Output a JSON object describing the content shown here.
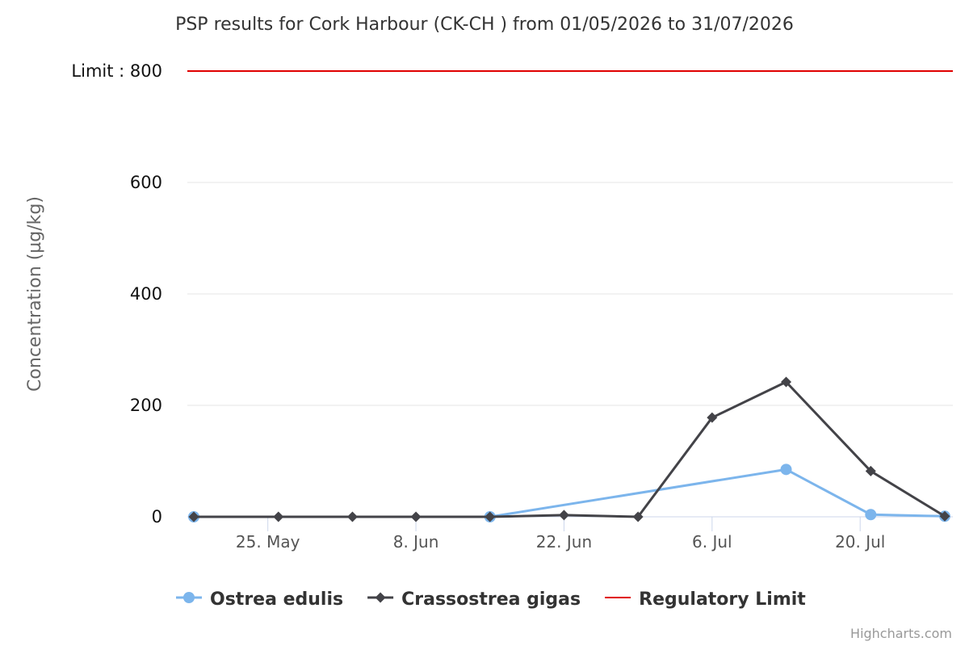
{
  "chart_data": {
    "type": "line",
    "title": "PSP results for Cork Harbour (CK-CH ) from 01/05/2026 to 31/07/2026",
    "ylabel": "Concentration (µg/kg)",
    "xlabel": "",
    "ylim": [
      0,
      800
    ],
    "xlim": [
      "2026-05-18",
      "2026-07-28"
    ],
    "y_ticks": [
      0,
      200,
      400,
      600,
      800
    ],
    "y_tick_labels": [
      "0",
      "200",
      "400",
      "600",
      "Limit : 800"
    ],
    "x_ticks": [
      "2026-05-25",
      "2026-06-08",
      "2026-06-22",
      "2026-07-06",
      "2026-07-20"
    ],
    "x_tick_labels": [
      "25. May",
      "8. Jun",
      "22. Jun",
      "6. Jul",
      "20. Jul"
    ],
    "grid": true,
    "legend_position": "bottom-center",
    "series": [
      {
        "name": "Ostrea edulis",
        "color": "#7cb5ec",
        "marker": "circle",
        "points": [
          {
            "x": "2026-05-18",
            "y": 0
          },
          {
            "x": "2026-06-15",
            "y": 0
          },
          {
            "x": "2026-07-13",
            "y": 85
          },
          {
            "x": "2026-07-21",
            "y": 4
          },
          {
            "x": "2026-07-28",
            "y": 1
          }
        ]
      },
      {
        "name": "Crassostrea gigas",
        "color": "#434348",
        "marker": "diamond",
        "points": [
          {
            "x": "2026-05-18",
            "y": 0
          },
          {
            "x": "2026-05-26",
            "y": 0
          },
          {
            "x": "2026-06-02",
            "y": 0
          },
          {
            "x": "2026-06-08",
            "y": 0
          },
          {
            "x": "2026-06-15",
            "y": 0
          },
          {
            "x": "2026-06-22",
            "y": 3
          },
          {
            "x": "2026-06-29",
            "y": 0
          },
          {
            "x": "2026-07-06",
            "y": 178
          },
          {
            "x": "2026-07-13",
            "y": 242
          },
          {
            "x": "2026-07-21",
            "y": 82
          },
          {
            "x": "2026-07-28",
            "y": 1
          }
        ]
      },
      {
        "name": "Regulatory Limit",
        "color": "#e00000",
        "marker": "none",
        "constant_y": 800
      }
    ]
  },
  "credits": "Highcharts.com"
}
